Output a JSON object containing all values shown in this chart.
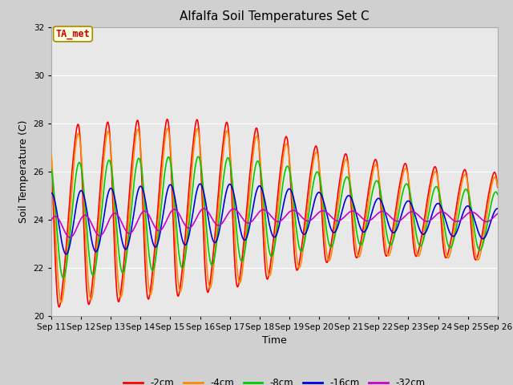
{
  "title": "Alfalfa Soil Temperatures Set C",
  "xlabel": "Time",
  "ylabel": "Soil Temperature (C)",
  "ylim": [
    20,
    32
  ],
  "xlim_days": [
    11,
    26
  ],
  "annotation_text": "TA_met",
  "annotation_color": "#cc0000",
  "annotation_bg": "#ffffdd",
  "annotation_border": "#aa8800",
  "fig_bg": "#d0d0d0",
  "plot_bg": "#e8e8e8",
  "grid_color": "#ffffff",
  "series": {
    "-2cm": {
      "color": "#ff0000",
      "linewidth": 1.2
    },
    "-4cm": {
      "color": "#ff8800",
      "linewidth": 1.2
    },
    "-8cm": {
      "color": "#00cc00",
      "linewidth": 1.2
    },
    "-16cm": {
      "color": "#0000dd",
      "linewidth": 1.2
    },
    "-32cm": {
      "color": "#cc00cc",
      "linewidth": 1.2
    }
  },
  "legend_labels": [
    "-2cm",
    "-4cm",
    "-8cm",
    "-16cm",
    "-32cm"
  ],
  "legend_colors": [
    "#ff0000",
    "#ff8800",
    "#00cc00",
    "#0000dd",
    "#cc00cc"
  ],
  "tick_labels": [
    "Sep 11",
    "Sep 12",
    "Sep 13",
    "Sep 14",
    "Sep 15",
    "Sep 16",
    "Sep 17",
    "Sep 18",
    "Sep 19",
    "Sep 20",
    "Sep 21",
    "Sep 22",
    "Sep 23",
    "Sep 24",
    "Sep 25",
    "Sep 26"
  ],
  "title_fontsize": 11,
  "axis_fontsize": 9,
  "tick_fontsize": 7.5
}
